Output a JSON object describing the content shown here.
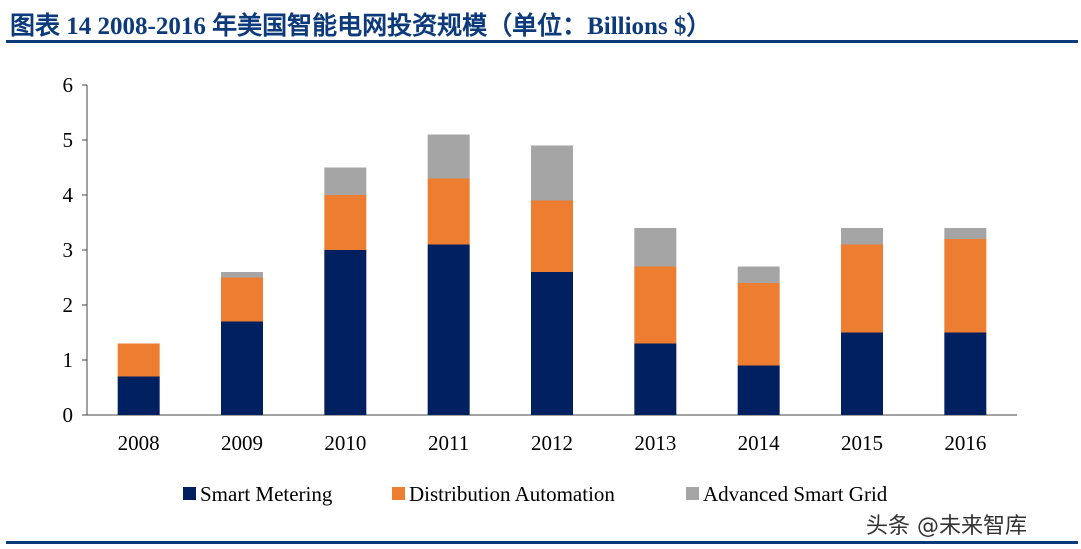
{
  "title": "图表 14    2008-2016 年美国智能电网投资规模（单位：Billions $）",
  "watermark": "头条 @未来智库",
  "chart_data": {
    "type": "bar",
    "stacked": true,
    "title": "2008-2016 年美国智能电网投资规模（单位：Billions $）",
    "xlabel": "",
    "ylabel": "",
    "ylim": [
      0,
      6
    ],
    "yticks": [
      0,
      1,
      2,
      3,
      4,
      5,
      6
    ],
    "grid": false,
    "legend_position": "bottom",
    "categories": [
      "2008",
      "2009",
      "2010",
      "2011",
      "2012",
      "2013",
      "2014",
      "2015",
      "2016"
    ],
    "series": [
      {
        "name": "Smart Metering",
        "color": "#002060",
        "values": [
          0.7,
          1.7,
          3.0,
          3.1,
          2.6,
          1.3,
          0.9,
          1.5,
          1.5
        ]
      },
      {
        "name": "Distribution Automation",
        "color": "#ed7d31",
        "values": [
          0.6,
          0.8,
          1.0,
          1.2,
          1.3,
          1.4,
          1.5,
          1.6,
          1.7
        ]
      },
      {
        "name": "Advanced Smart Grid",
        "color": "#a5a5a5",
        "values": [
          0.0,
          0.1,
          0.5,
          0.8,
          1.0,
          0.7,
          0.3,
          0.3,
          0.2
        ]
      }
    ]
  }
}
